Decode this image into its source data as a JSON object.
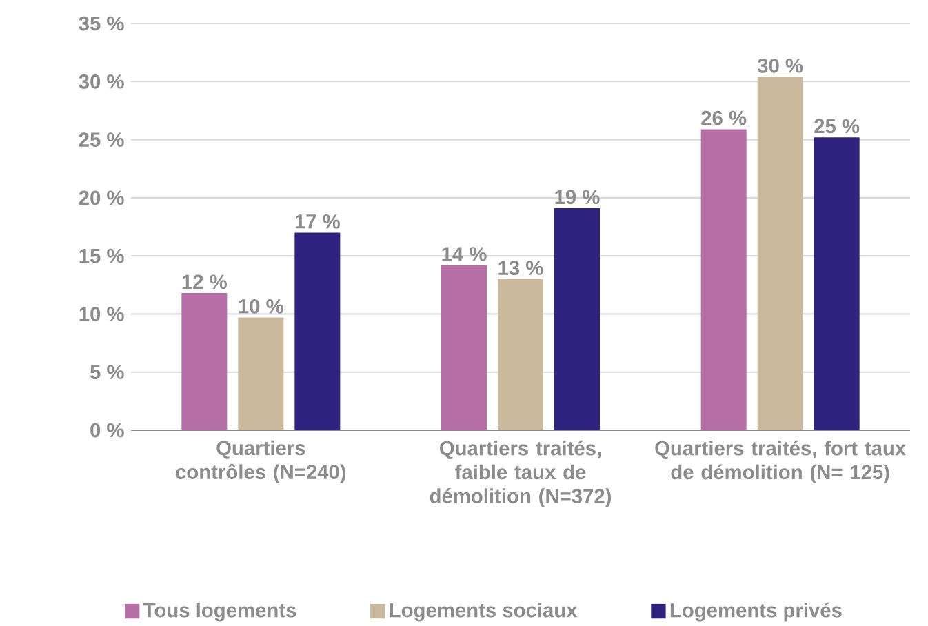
{
  "chart_data": {
    "type": "bar",
    "categories": [
      "Quartiers contrôles (N=240)",
      "Quartiers traités, faible taux de démolition (N=372)",
      "Quartiers traités, fort taux de démolition (N= 125)"
    ],
    "series": [
      {
        "name": "Tous logements",
        "color": "#b56ea6",
        "values": [
          11.8,
          14.2,
          25.9
        ],
        "value_labels": [
          "12 %",
          "14 %",
          "26 %"
        ]
      },
      {
        "name": "Logements sociaux",
        "color": "#cab99d",
        "values": [
          9.7,
          13.0,
          30.4
        ],
        "value_labels": [
          "10 %",
          "13 %",
          "30 %"
        ]
      },
      {
        "name": "Logements privés",
        "color": "#30237f",
        "values": [
          17.0,
          19.1,
          25.2
        ],
        "value_labels": [
          "17 %",
          "19 %",
          "25 %"
        ]
      }
    ],
    "ylim": [
      0,
      35
    ],
    "yticks": [
      {
        "value": 0,
        "label": "0 %"
      },
      {
        "value": 5,
        "label": "5 %"
      },
      {
        "value": 10,
        "label": "10 %"
      },
      {
        "value": 15,
        "label": "15 %"
      },
      {
        "value": 20,
        "label": "20 %"
      },
      {
        "value": 25,
        "label": "25 %"
      },
      {
        "value": 30,
        "label": "30 %"
      },
      {
        "value": 35,
        "label": "35 %"
      }
    ],
    "grid": "y",
    "legend": "bottom"
  }
}
